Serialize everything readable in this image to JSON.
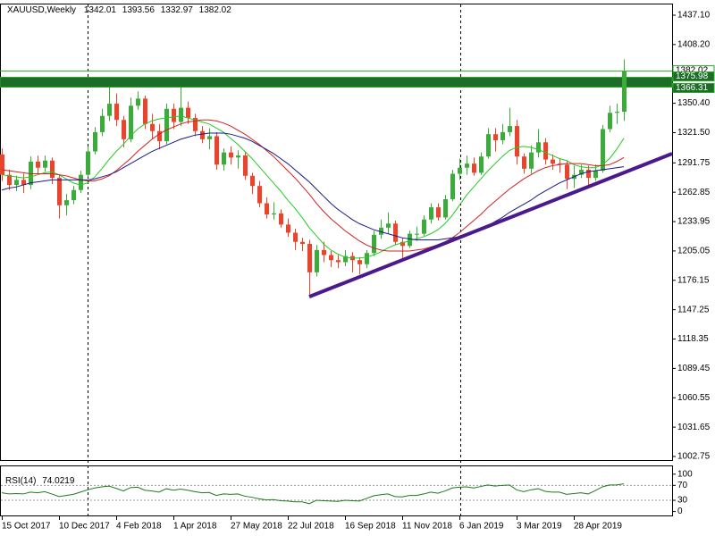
{
  "chart_data": {
    "type": "candlestick",
    "title": "XAUUSD,Weekly",
    "up_color": "#3cab3c",
    "down_color": "#e8452c",
    "ylim": [
      999.23,
      1447.65
    ],
    "yticks": [
      {
        "value": 1437.1,
        "label": "1437.10"
      },
      {
        "value": 1408.2,
        "label": "1408.20"
      },
      {
        "value": 1350.4,
        "label": "1350.40"
      },
      {
        "value": 1321.5,
        "label": "1321.50"
      },
      {
        "value": 1291.75,
        "label": "1291.75"
      },
      {
        "value": 1262.85,
        "label": "1262.85"
      },
      {
        "value": 1233.95,
        "label": "1233.95"
      },
      {
        "value": 1205.05,
        "label": "1205.05"
      },
      {
        "value": 1176.15,
        "label": "1176.15"
      },
      {
        "value": 1147.25,
        "label": "1147.25"
      },
      {
        "value": 1118.35,
        "label": "1118.35"
      },
      {
        "value": 1089.45,
        "label": "1089.45"
      },
      {
        "value": 1060.55,
        "label": "1060.55"
      },
      {
        "value": 1031.65,
        "label": "1031.65"
      },
      {
        "value": 1002.75,
        "label": "1002.75"
      }
    ],
    "categories": [
      "15 Oct 2017",
      null,
      null,
      null,
      null,
      null,
      null,
      null,
      "10 Dec 2017",
      null,
      null,
      null,
      null,
      null,
      null,
      null,
      "4 Feb 2018",
      null,
      null,
      null,
      null,
      null,
      null,
      null,
      "1 Apr 2018",
      null,
      null,
      null,
      null,
      null,
      null,
      null,
      "27 May 2018",
      null,
      null,
      null,
      null,
      null,
      null,
      null,
      "22 Jul 2018",
      null,
      null,
      null,
      null,
      null,
      null,
      null,
      "16 Sep 2018",
      null,
      null,
      null,
      null,
      null,
      null,
      null,
      "11 Nov 2018",
      null,
      null,
      null,
      null,
      null,
      null,
      null,
      "6 Jan 2019",
      null,
      null,
      null,
      null,
      null,
      null,
      null,
      "3 Mar 2019",
      null,
      null,
      null,
      null,
      null,
      null,
      null,
      "28 Apr 2019",
      null,
      null,
      null,
      null,
      null,
      null,
      null
    ],
    "open": [
      1300,
      1280,
      1270,
      1275,
      1270,
      1293,
      1287,
      1294,
      1277,
      1250,
      1255,
      1265,
      1280,
      1303,
      1322,
      1338,
      1350,
      1334,
      1315,
      1348,
      1355,
      1330,
      1323,
      1313,
      1345,
      1332,
      1346,
      1336,
      1323,
      1315,
      1318,
      1290,
      1302,
      1297,
      1299,
      1279,
      1269,
      1252,
      1241,
      1242,
      1231,
      1223,
      1214,
      1212,
      1184,
      1206,
      1201,
      1196,
      1194,
      1200,
      1196,
      1192,
      1203,
      1221,
      1228,
      1232,
      1214,
      1210,
      1222,
      1222,
      1236,
      1248,
      1238,
      1256,
      1281,
      1287,
      1291,
      1282,
      1298,
      1320,
      1314,
      1322,
      1328,
      1298,
      1286,
      1302,
      1312,
      1295,
      1291,
      1290,
      1276,
      1280,
      1285,
      1277,
      1284,
      1325,
      1341,
      1342.01
    ],
    "high": [
      1306,
      1285,
      1279,
      1281,
      1298,
      1299,
      1299,
      1297,
      1280,
      1261,
      1269,
      1284,
      1308,
      1327,
      1345,
      1366,
      1360,
      1338,
      1356,
      1362,
      1358,
      1340,
      1330,
      1350,
      1350,
      1366,
      1352,
      1340,
      1328,
      1326,
      1322,
      1306,
      1308,
      1304,
      1303,
      1282,
      1274,
      1258,
      1253,
      1246,
      1237,
      1227,
      1218,
      1216,
      1211,
      1214,
      1205,
      1201,
      1206,
      1204,
      1199,
      1206,
      1225,
      1236,
      1243,
      1235,
      1218,
      1225,
      1229,
      1240,
      1252,
      1252,
      1260,
      1285,
      1296,
      1299,
      1297,
      1302,
      1326,
      1326,
      1330,
      1346,
      1334,
      1301,
      1309,
      1325,
      1316,
      1300,
      1296,
      1294,
      1289,
      1290,
      1289,
      1290,
      1329,
      1348,
      1350,
      1393.56
    ],
    "low": [
      1274,
      1265,
      1264,
      1262,
      1266,
      1281,
      1283,
      1271,
      1237,
      1240,
      1251,
      1262,
      1278,
      1300,
      1318,
      1333,
      1328,
      1307,
      1312,
      1344,
      1325,
      1315,
      1305,
      1310,
      1325,
      1328,
      1330,
      1318,
      1311,
      1305,
      1285,
      1284,
      1290,
      1286,
      1275,
      1261,
      1248,
      1237,
      1236,
      1228,
      1219,
      1206,
      1205,
      1160,
      1180,
      1194,
      1189,
      1188,
      1190,
      1184,
      1182,
      1188,
      1200,
      1217,
      1222,
      1211,
      1198,
      1208,
      1215,
      1220,
      1232,
      1235,
      1236,
      1254,
      1275,
      1280,
      1279,
      1280,
      1296,
      1303,
      1310,
      1318,
      1290,
      1281,
      1281,
      1297,
      1290,
      1285,
      1282,
      1266,
      1267,
      1277,
      1268,
      1274,
      1282,
      1322,
      1330,
      1332.97
    ],
    "close": [
      1280,
      1270,
      1275,
      1270,
      1293,
      1287,
      1294,
      1277,
      1250,
      1255,
      1265,
      1280,
      1303,
      1322,
      1338,
      1350,
      1334,
      1315,
      1348,
      1355,
      1330,
      1323,
      1313,
      1345,
      1332,
      1346,
      1336,
      1323,
      1315,
      1318,
      1290,
      1302,
      1297,
      1299,
      1279,
      1269,
      1252,
      1241,
      1242,
      1231,
      1223,
      1214,
      1212,
      1184,
      1206,
      1201,
      1196,
      1194,
      1200,
      1196,
      1192,
      1203,
      1221,
      1228,
      1232,
      1214,
      1210,
      1222,
      1222,
      1236,
      1248,
      1238,
      1256,
      1281,
      1287,
      1291,
      1282,
      1298,
      1320,
      1314,
      1322,
      1328,
      1298,
      1286,
      1302,
      1312,
      1295,
      1291,
      1290,
      1276,
      1280,
      1285,
      1277,
      1284,
      1325,
      1341,
      1342.01,
      1382.02
    ],
    "moving_averages": [
      {
        "color": "#22cc22",
        "values": [
          1280,
          1279,
          1278,
          1277,
          1278,
          1280,
          1282,
          1283,
          1280,
          1276,
          1272,
          1270,
          1272,
          1278,
          1286,
          1295,
          1303,
          1310,
          1318,
          1325,
          1330,
          1333,
          1335,
          1336,
          1337,
          1338,
          1336,
          1334,
          1332,
          1330,
          1326,
          1322,
          1316,
          1310,
          1303,
          1296,
          1288,
          1280,
          1272,
          1264,
          1255,
          1247,
          1238,
          1228,
          1220,
          1212,
          1206,
          1202,
          1199,
          1198,
          1198,
          1199,
          1201,
          1204,
          1208,
          1211,
          1213,
          1215,
          1217,
          1219,
          1222,
          1226,
          1232,
          1240,
          1250,
          1260,
          1268,
          1276,
          1284,
          1291,
          1298,
          1304,
          1307,
          1308,
          1307,
          1305,
          1302,
          1299,
          1296,
          1294,
          1290,
          1288,
          1287,
          1287,
          1290,
          1296,
          1305,
          1316
        ]
      },
      {
        "color": "#d42020",
        "values": [
          1285,
          1284,
          1283,
          1282,
          1281,
          1281,
          1281,
          1281,
          1280,
          1279,
          1277,
          1275,
          1274,
          1274,
          1276,
          1279,
          1284,
          1290,
          1296,
          1303,
          1309,
          1315,
          1320,
          1324,
          1327,
          1330,
          1332,
          1333,
          1334,
          1334,
          1333,
          1331,
          1328,
          1324,
          1320,
          1315,
          1310,
          1304,
          1298,
          1291,
          1284,
          1277,
          1269,
          1261,
          1252,
          1244,
          1237,
          1231,
          1225,
          1220,
          1215,
          1211,
          1208,
          1206,
          1205,
          1205,
          1205,
          1205,
          1206,
          1207,
          1209,
          1211,
          1214,
          1218,
          1223,
          1229,
          1235,
          1241,
          1248,
          1254,
          1260,
          1266,
          1271,
          1276,
          1280,
          1284,
          1287,
          1289,
          1290,
          1291,
          1291,
          1291,
          1290,
          1289,
          1289,
          1290,
          1293,
          1297
        ]
      },
      {
        "color": "#1a1a8c",
        "values": [
          1265,
          1267,
          1268,
          1270,
          1272,
          1273,
          1274,
          1275,
          1275,
          1275,
          1275,
          1275,
          1275,
          1276,
          1278,
          1280,
          1283,
          1287,
          1291,
          1295,
          1299,
          1303,
          1306,
          1309,
          1312,
          1315,
          1317,
          1319,
          1320,
          1321,
          1321,
          1321,
          1320,
          1318,
          1316,
          1313,
          1309,
          1305,
          1301,
          1296,
          1291,
          1285,
          1279,
          1273,
          1266,
          1259,
          1252,
          1246,
          1241,
          1236,
          1232,
          1229,
          1226,
          1224,
          1222,
          1220,
          1218,
          1217,
          1216,
          1216,
          1216,
          1216,
          1217,
          1218,
          1219,
          1221,
          1224,
          1227,
          1230,
          1234,
          1238,
          1243,
          1247,
          1251,
          1255,
          1260,
          1264,
          1268,
          1272,
          1275,
          1278,
          1281,
          1283,
          1284,
          1285,
          1286,
          1287,
          1288
        ]
      }
    ],
    "trendline": {
      "color": "#4a1a8c",
      "x": [
        43,
        93.75
      ],
      "y": [
        1160,
        1300.8
      ]
    },
    "levels": [
      1382.02,
      1375.98,
      1366.31
    ],
    "band_color": "#1f6b2a",
    "level_color": "#22aa22",
    "rsi": {
      "label": "RSI(14)",
      "color": "#1e7a1e",
      "ylim": [
        -13,
        121
      ],
      "yticks": [
        100,
        70,
        30,
        0
      ],
      "values": [
        50,
        47,
        48,
        47,
        52,
        50,
        53,
        47,
        40,
        43,
        46,
        52,
        58,
        63,
        66,
        68,
        62,
        55,
        64,
        65,
        57,
        55,
        52,
        61,
        57,
        60,
        57,
        53,
        50,
        51,
        43,
        47,
        46,
        47,
        41,
        38,
        34,
        31,
        32,
        29,
        28,
        26,
        26,
        21,
        30,
        29,
        28,
        27,
        30,
        29,
        28,
        35,
        42,
        45,
        47,
        40,
        39,
        43,
        43,
        47,
        52,
        49,
        55,
        63,
        65,
        66,
        63,
        67,
        71,
        68,
        70,
        71,
        58,
        53,
        58,
        61,
        54,
        52,
        52,
        46,
        48,
        50,
        47,
        56,
        66,
        71,
        71,
        74.0219
      ]
    }
  }
}
